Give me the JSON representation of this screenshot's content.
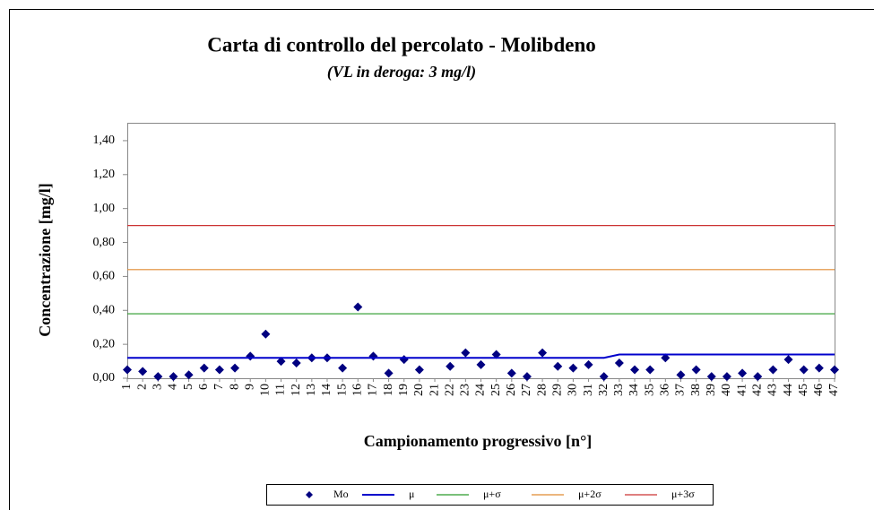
{
  "chart_data": {
    "type": "line",
    "title": "Carta di controllo del percolato - Molibdeno",
    "subtitle": "(VL in deroga: 3 mg/l)",
    "x_label": "Campionamento progressivo [n°]",
    "y_label": "Concentrazione [mg/l]",
    "categories": [
      "1",
      "2",
      "3",
      "4",
      "5",
      "6",
      "7",
      "8",
      "9",
      "10",
      "11",
      "12",
      "13",
      "14",
      "15",
      "16",
      "17",
      "18",
      "19",
      "20",
      "21",
      "22",
      "23",
      "24",
      "25",
      "26",
      "27",
      "28",
      "29",
      "30",
      "31",
      "32",
      "33",
      "34",
      "35",
      "36",
      "37",
      "38",
      "39",
      "40",
      "41",
      "42",
      "43",
      "44",
      "45",
      "46",
      "47"
    ],
    "ylim": [
      0,
      1.5
    ],
    "yticks": [
      {
        "value": 0,
        "label": "0,00"
      },
      {
        "value": 0.2,
        "label": "0,20"
      },
      {
        "value": 0.4,
        "label": "0,40"
      },
      {
        "value": 0.6,
        "label": "0,60"
      },
      {
        "value": 0.8,
        "label": "0,80"
      },
      {
        "value": 1.0,
        "label": "1,00"
      },
      {
        "value": 1.2,
        "label": "1,20"
      },
      {
        "value": 1.4,
        "label": "1,40"
      }
    ],
    "grid": false,
    "legend": "bottom",
    "series": [
      {
        "name": "Mo",
        "color": "#000080",
        "style": "markers",
        "values": [
          0.05,
          0.04,
          0.01,
          0.01,
          0.02,
          0.06,
          0.05,
          0.06,
          0.13,
          0.26,
          0.1,
          0.09,
          0.12,
          0.12,
          0.06,
          0.42,
          0.13,
          0.03,
          0.11,
          0.05,
          null,
          0.07,
          0.15,
          0.08,
          0.14,
          0.03,
          0.01,
          0.15,
          0.07,
          0.06,
          0.08,
          0.01,
          0.09,
          0.05,
          0.05,
          0.12,
          0.02,
          0.05,
          0.01,
          0.01,
          0.03,
          0.01,
          0.05,
          0.11,
          0.05,
          0.06,
          0.05
        ]
      },
      {
        "name": "μ",
        "color": "#0000cc",
        "style": "line",
        "values": [
          0.12,
          0.12,
          0.12,
          0.12,
          0.12,
          0.12,
          0.12,
          0.12,
          0.12,
          0.12,
          0.12,
          0.12,
          0.12,
          0.12,
          0.12,
          0.12,
          0.12,
          0.12,
          0.12,
          0.12,
          0.12,
          0.12,
          0.12,
          0.12,
          0.12,
          0.12,
          0.12,
          0.12,
          0.12,
          0.12,
          0.12,
          0.12,
          0.14,
          0.14,
          0.14,
          0.14,
          0.14,
          0.14,
          0.14,
          0.14,
          0.14,
          0.14,
          0.14,
          0.14,
          0.14,
          0.14,
          0.14
        ]
      },
      {
        "name": "μ+σ",
        "color": "#2a9a2a",
        "style": "line",
        "values": [
          0.38,
          0.38,
          0.38,
          0.38,
          0.38,
          0.38,
          0.38,
          0.38,
          0.38,
          0.38,
          0.38,
          0.38,
          0.38,
          0.38,
          0.38,
          0.38,
          0.38,
          0.38,
          0.38,
          0.38,
          0.38,
          0.38,
          0.38,
          0.38,
          0.38,
          0.38,
          0.38,
          0.38,
          0.38,
          0.38,
          0.38,
          0.38,
          0.38,
          0.38,
          0.38,
          0.38,
          0.38,
          0.38,
          0.38,
          0.38,
          0.38,
          0.38,
          0.38,
          0.38,
          0.38,
          0.38,
          0.38
        ]
      },
      {
        "name": "μ+2σ",
        "color": "#e08a30",
        "style": "line",
        "values": [
          0.64,
          0.64,
          0.64,
          0.64,
          0.64,
          0.64,
          0.64,
          0.64,
          0.64,
          0.64,
          0.64,
          0.64,
          0.64,
          0.64,
          0.64,
          0.64,
          0.64,
          0.64,
          0.64,
          0.64,
          0.64,
          0.64,
          0.64,
          0.64,
          0.64,
          0.64,
          0.64,
          0.64,
          0.64,
          0.64,
          0.64,
          0.64,
          0.64,
          0.64,
          0.64,
          0.64,
          0.64,
          0.64,
          0.64,
          0.64,
          0.64,
          0.64,
          0.64,
          0.64,
          0.64,
          0.64,
          0.64
        ]
      },
      {
        "name": "μ+3σ",
        "color": "#cc3333",
        "style": "line",
        "values": [
          0.9,
          0.9,
          0.9,
          0.9,
          0.9,
          0.9,
          0.9,
          0.9,
          0.9,
          0.9,
          0.9,
          0.9,
          0.9,
          0.9,
          0.9,
          0.9,
          0.9,
          0.9,
          0.9,
          0.9,
          0.9,
          0.9,
          0.9,
          0.9,
          0.9,
          0.9,
          0.9,
          0.9,
          0.9,
          0.9,
          0.9,
          0.9,
          0.9,
          0.9,
          0.9,
          0.9,
          0.9,
          0.9,
          0.9,
          0.9,
          0.9,
          0.9,
          0.9,
          0.9,
          0.9,
          0.9,
          0.9
        ]
      }
    ]
  }
}
